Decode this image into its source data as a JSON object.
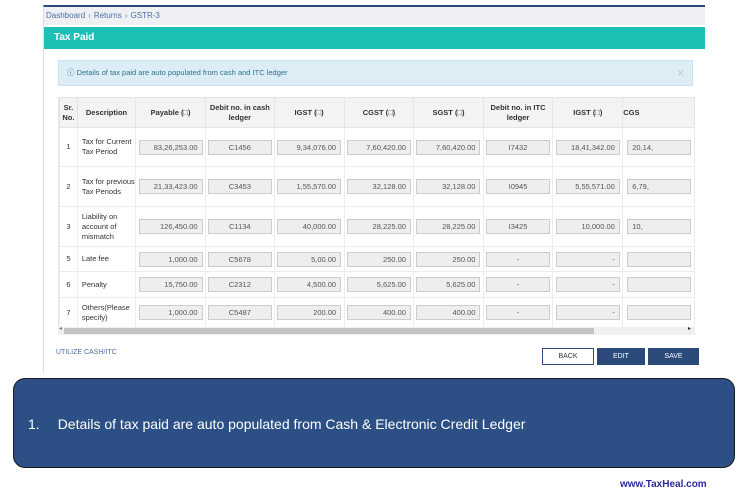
{
  "breadcrumb": [
    "Dashboard",
    "Returns",
    "GSTR-3"
  ],
  "header": {
    "title": "Tax Paid"
  },
  "info": {
    "text": "Details of tax paid are auto populated from cash and ITC ledger",
    "close": "×"
  },
  "table": {
    "headers": [
      "Sr. No.",
      "Description",
      "Payable (□)",
      "Debit no. in cash ledger",
      "IGST (□)",
      "CGST (□)",
      "SGST (□)",
      "Debit no. in ITC ledger",
      "IGST (□)",
      "CGS"
    ],
    "rows": [
      [
        "1",
        "Tax for Current Tax Period",
        "83,26,253.00",
        "C1456",
        "9,34,076.00",
        "7,60,420.00",
        "7,60,420.00",
        "I7432",
        "18,41,342.00",
        "20,14,"
      ],
      [
        "2",
        "Tax for previous Tax Periods",
        "21,33,423.00",
        "C3453",
        "1,55,570.00",
        "32,128.00",
        "32,128.00",
        "I0945",
        "5,55,571.00",
        "6,79,"
      ],
      [
        "3",
        "Liability on account of mismatch",
        "126,450.00",
        "C1134",
        "40,000.00",
        "28,225.00",
        "28,225.00",
        "I3425",
        "10,000.00",
        "10,"
      ],
      [
        "5",
        "Late fee",
        "1,000.00",
        "C5678",
        "5,00.00",
        "250.00",
        "250.00",
        "-",
        "-",
        ""
      ],
      [
        "6",
        "Penalty",
        "15,750.00",
        "C2312",
        "4,500.00",
        "5,625.00",
        "5,625.00",
        "-",
        "-",
        ""
      ],
      [
        "7",
        "Others(Please specify)",
        "1,000.00",
        "C5487",
        "200.00",
        "400.00",
        "400.00",
        "-",
        "-",
        ""
      ]
    ]
  },
  "links": {
    "utilize": "UTILIZE CASH/ITC"
  },
  "buttons": {
    "back": "BACK",
    "edit": "EDIT",
    "save": "SAVE"
  },
  "note": {
    "number": "1.",
    "text": "Details of tax paid are auto populated from Cash & Electronic Credit Ledger"
  },
  "footer": "www.TaxHeal.com",
  "colors": {
    "header": "#1cc0b5",
    "primary": "#2b4a7a",
    "note": "#2c5085"
  }
}
